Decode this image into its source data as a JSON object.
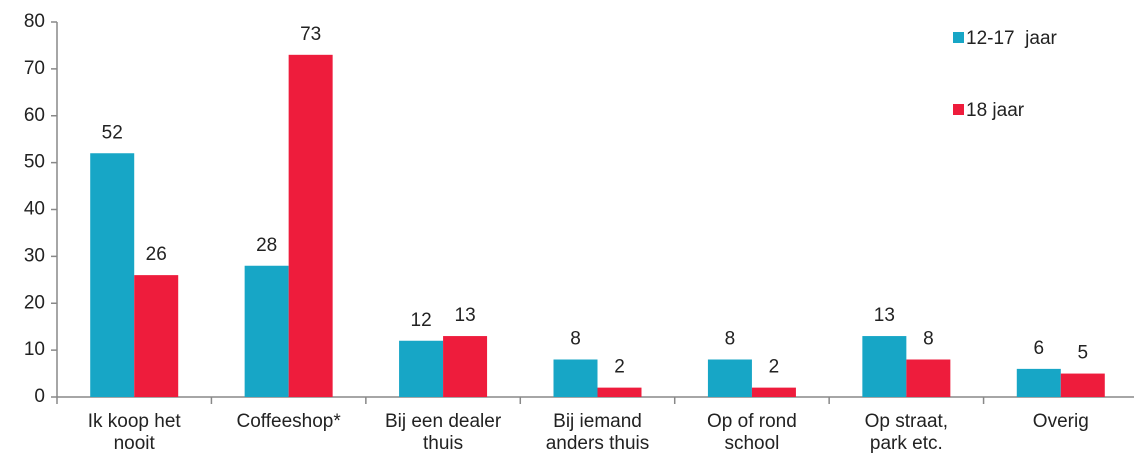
{
  "chart_data": {
    "type": "bar",
    "categories": [
      "Ik koop het\nnooit",
      "Coffeeshop*",
      "Bij een dealer\nthuis",
      "Bij iemand\nanders thuis",
      "Op of rond\nschool",
      "Op straat,\npark etc.",
      "Overig"
    ],
    "series": [
      {
        "name": "12-17  jaar",
        "color": "#17a6c6",
        "values": [
          52,
          28,
          12,
          8,
          8,
          13,
          6
        ]
      },
      {
        "name": "18 jaar",
        "color": "#ee1c3c",
        "values": [
          26,
          73,
          13,
          2,
          2,
          8,
          5
        ]
      }
    ],
    "ylim": [
      0,
      80
    ],
    "yticks": [
      0,
      10,
      20,
      30,
      40,
      50,
      60,
      70,
      80
    ],
    "legend": "top-right"
  }
}
